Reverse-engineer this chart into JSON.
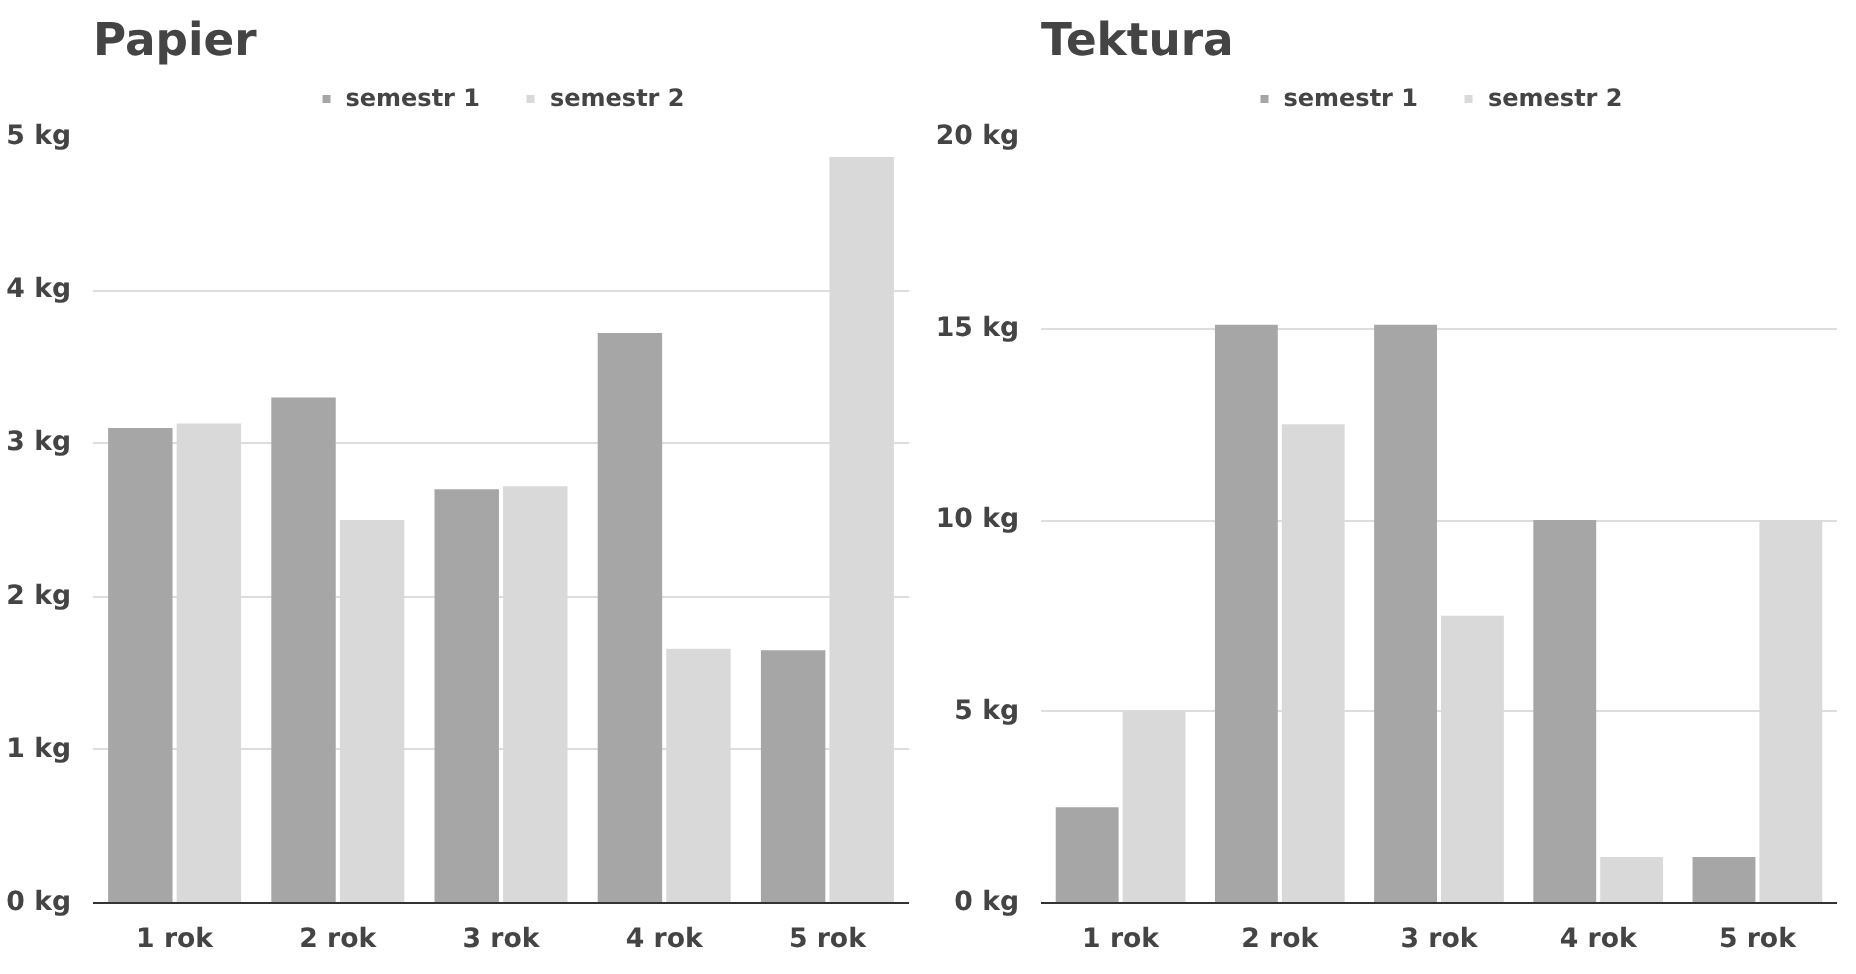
{
  "chart_data": [
    {
      "type": "bar",
      "title": "Papier",
      "categories": [
        "1 rok",
        "2 rok",
        "3 rok",
        "4 rok",
        "5 rok"
      ],
      "series": [
        {
          "name": "semestr 1",
          "color": "#a6a6a6",
          "values": [
            3.1,
            3.3,
            2.7,
            3.72,
            1.65
          ]
        },
        {
          "name": "semestr 2",
          "color": "#d9d9d9",
          "values": [
            3.13,
            2.5,
            2.72,
            1.66,
            4.87
          ]
        }
      ],
      "ylim": [
        0,
        5
      ],
      "yticks": [
        {
          "value": 0,
          "label": "0 kg"
        },
        {
          "value": 1,
          "label": "1 kg"
        },
        {
          "value": 2,
          "label": "2 kg"
        },
        {
          "value": 3,
          "label": "3 kg"
        },
        {
          "value": 4,
          "label": "4 kg"
        },
        {
          "value": 5,
          "label": "5 kg"
        }
      ],
      "grid": "y",
      "legend": "top"
    },
    {
      "type": "bar",
      "title": "Tektura",
      "categories": [
        "1 rok",
        "2 rok",
        "3 rok",
        "4 rok",
        "5 rok"
      ],
      "series": [
        {
          "name": "semestr 1",
          "color": "#a6a6a6",
          "values": [
            2.5,
            15.1,
            15.1,
            10,
            1.2
          ]
        },
        {
          "name": "semestr 2",
          "color": "#d9d9d9",
          "values": [
            5,
            12.5,
            7.5,
            1.2,
            10
          ]
        }
      ],
      "ylim": [
        0,
        20
      ],
      "yticks": [
        {
          "value": 0,
          "label": "0 kg"
        },
        {
          "value": 5,
          "label": "5 kg"
        },
        {
          "value": 10,
          "label": "10 kg"
        },
        {
          "value": 15,
          "label": "15 kg"
        },
        {
          "value": 20,
          "label": "20 kg"
        }
      ],
      "grid": "y",
      "legend": "top"
    }
  ]
}
